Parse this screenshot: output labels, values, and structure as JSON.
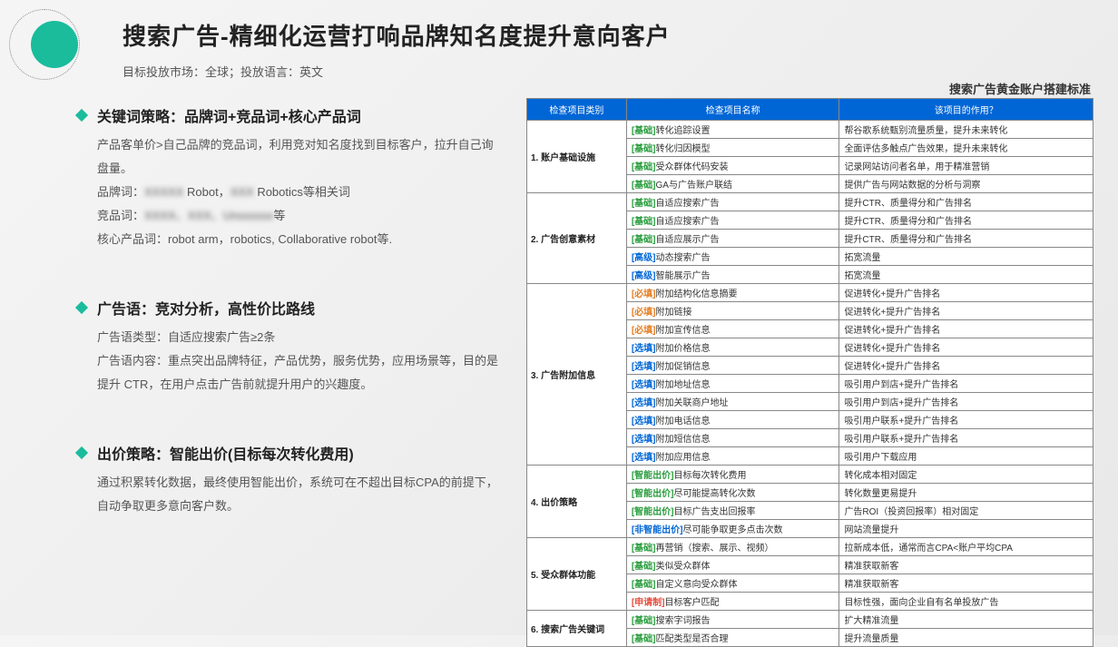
{
  "header": {
    "title": "搜索广告-精细化运营打响品牌知名度提升意向客户",
    "subtitle": "目标投放市场：全球；投放语言：英文",
    "right_label": "搜索广告黄金账户搭建标准"
  },
  "sections": [
    {
      "title": "关键词策略：品牌词+竞品词+核心产品词",
      "body": "产品客单价>自己品牌的竞品词，利用竞对知名度找到目标客户，拉升自己询盘量。<br>品牌词：<span class='blur'>XXXXX</span> Robot，<span class='blur'>XXX</span> Robotics等相关词<br>竞品词：<span class='blur'>XXXX、XXX、Unxxxxxx</span>等<br>核心产品词：robot arm，robotics, Collaborative robot等."
    },
    {
      "title": "广告语：竞对分析，高性价比路线",
      "body": "广告语类型：自适应搜索广告≥2条<br>广告语内容：重点突出品牌特征，产品优势，服务优势，应用场景等，目的是提升 CTR，在用户点击广告前就提升用户的兴趣度。"
    },
    {
      "title": "出价策略：智能出价(目标每次转化费用)",
      "body": "通过积累转化数据，最终使用智能出价，系统可在不超出目标CPA的前提下，自动争取更多意向客户数。"
    }
  ],
  "table": {
    "headers": [
      "检查项目类别",
      "检查项目名称",
      "该项目的作用？"
    ],
    "col_widths": [
      "110px",
      "235px",
      "280px"
    ],
    "groups": [
      {
        "category": "1. 账户基础设施",
        "rows": [
          {
            "tag": "基础",
            "tag_class": "tag-basic",
            "name": "转化追踪设置",
            "purpose": "帮谷歌系统甄别流量质量，提升未来转化"
          },
          {
            "tag": "基础",
            "tag_class": "tag-basic",
            "name": "转化归因模型",
            "purpose": "全面评估多触点广告效果，提升未来转化"
          },
          {
            "tag": "基础",
            "tag_class": "tag-basic",
            "name": "受众群体代码安装",
            "purpose": "记录网站访问者名单，用于精准营销"
          },
          {
            "tag": "基础",
            "tag_class": "tag-basic",
            "name": "GA与广告账户联结",
            "purpose": "提供广告与网站数据的分析与洞察"
          }
        ]
      },
      {
        "category": "2. 广告创意素材",
        "rows": [
          {
            "tag": "基础",
            "tag_class": "tag-basic",
            "name": "自适应搜索广告",
            "purpose": "提升CTR、质量得分和广告排名"
          },
          {
            "tag": "基础",
            "tag_class": "tag-basic",
            "name": "自适应搜索广告",
            "purpose": "提升CTR、质量得分和广告排名"
          },
          {
            "tag": "基础",
            "tag_class": "tag-basic",
            "name": "自适应展示广告",
            "purpose": "提升CTR、质量得分和广告排名"
          },
          {
            "tag": "高级",
            "tag_class": "tag-adv",
            "name": "动态搜索广告",
            "purpose": "拓宽流量"
          },
          {
            "tag": "高级",
            "tag_class": "tag-adv",
            "name": "智能展示广告",
            "purpose": "拓宽流量"
          }
        ]
      },
      {
        "category": "3. 广告附加信息",
        "rows": [
          {
            "tag": "必填",
            "tag_class": "tag-req",
            "name": "附加结构化信息摘要",
            "purpose": "促进转化+提升广告排名"
          },
          {
            "tag": "必填",
            "tag_class": "tag-req",
            "name": "附加链接",
            "purpose": "促进转化+提升广告排名"
          },
          {
            "tag": "必填",
            "tag_class": "tag-req",
            "name": "附加宣传信息",
            "purpose": "促进转化+提升广告排名"
          },
          {
            "tag": "选填",
            "tag_class": "tag-opt",
            "name": "附加价格信息",
            "purpose": "促进转化+提升广告排名"
          },
          {
            "tag": "选填",
            "tag_class": "tag-opt",
            "name": "附加促销信息",
            "purpose": "促进转化+提升广告排名"
          },
          {
            "tag": "选填",
            "tag_class": "tag-opt",
            "name": "附加地址信息",
            "purpose": "吸引用户到店+提升广告排名"
          },
          {
            "tag": "选填",
            "tag_class": "tag-opt",
            "name": "附加关联商户地址",
            "purpose": "吸引用户到店+提升广告排名"
          },
          {
            "tag": "选填",
            "tag_class": "tag-opt",
            "name": "附加电话信息",
            "purpose": "吸引用户联系+提升广告排名"
          },
          {
            "tag": "选填",
            "tag_class": "tag-opt",
            "name": "附加短信信息",
            "purpose": "吸引用户联系+提升广告排名"
          },
          {
            "tag": "选填",
            "tag_class": "tag-opt",
            "name": "附加应用信息",
            "purpose": "吸引用户下载应用"
          }
        ]
      },
      {
        "category": "4. 出价策略",
        "rows": [
          {
            "tag": "智能出价",
            "tag_class": "tag-smart",
            "name": "目标每次转化费用",
            "purpose": "转化成本相对固定"
          },
          {
            "tag": "智能出价",
            "tag_class": "tag-smart",
            "name": "尽可能提高转化次数",
            "purpose": "转化数量更易提升"
          },
          {
            "tag": "智能出价",
            "tag_class": "tag-smart",
            "name": "目标广告支出回报率",
            "purpose": "广告ROI（投资回报率）相对固定"
          },
          {
            "tag": "非智能出价",
            "tag_class": "tag-nonsmart",
            "name": "尽可能争取更多点击次数",
            "purpose": "网站流量提升"
          }
        ]
      },
      {
        "category": "5. 受众群体功能",
        "rows": [
          {
            "tag": "基础",
            "tag_class": "tag-basic",
            "name": "再营销（搜索、展示、视频）",
            "purpose": "拉新成本低，通常而言CPA<账户平均CPA"
          },
          {
            "tag": "基础",
            "tag_class": "tag-basic",
            "name": "类似受众群体",
            "purpose": "精准获取新客"
          },
          {
            "tag": "基础",
            "tag_class": "tag-basic",
            "name": "自定义意向受众群体",
            "purpose": "精准获取新客"
          },
          {
            "tag": "申请制",
            "tag_class": "tag-apply",
            "name": "目标客户匹配",
            "purpose": "目标性强，面向企业自有名单投放广告"
          }
        ]
      },
      {
        "category": "6. 搜索广告关键词",
        "rows": [
          {
            "tag": "基础",
            "tag_class": "tag-basic",
            "name": "搜索字词报告",
            "purpose": "扩大精准流量"
          },
          {
            "tag": "基础",
            "tag_class": "tag-basic",
            "name": "匹配类型是否合理",
            "purpose": "提升流量质量"
          }
        ]
      }
    ]
  }
}
